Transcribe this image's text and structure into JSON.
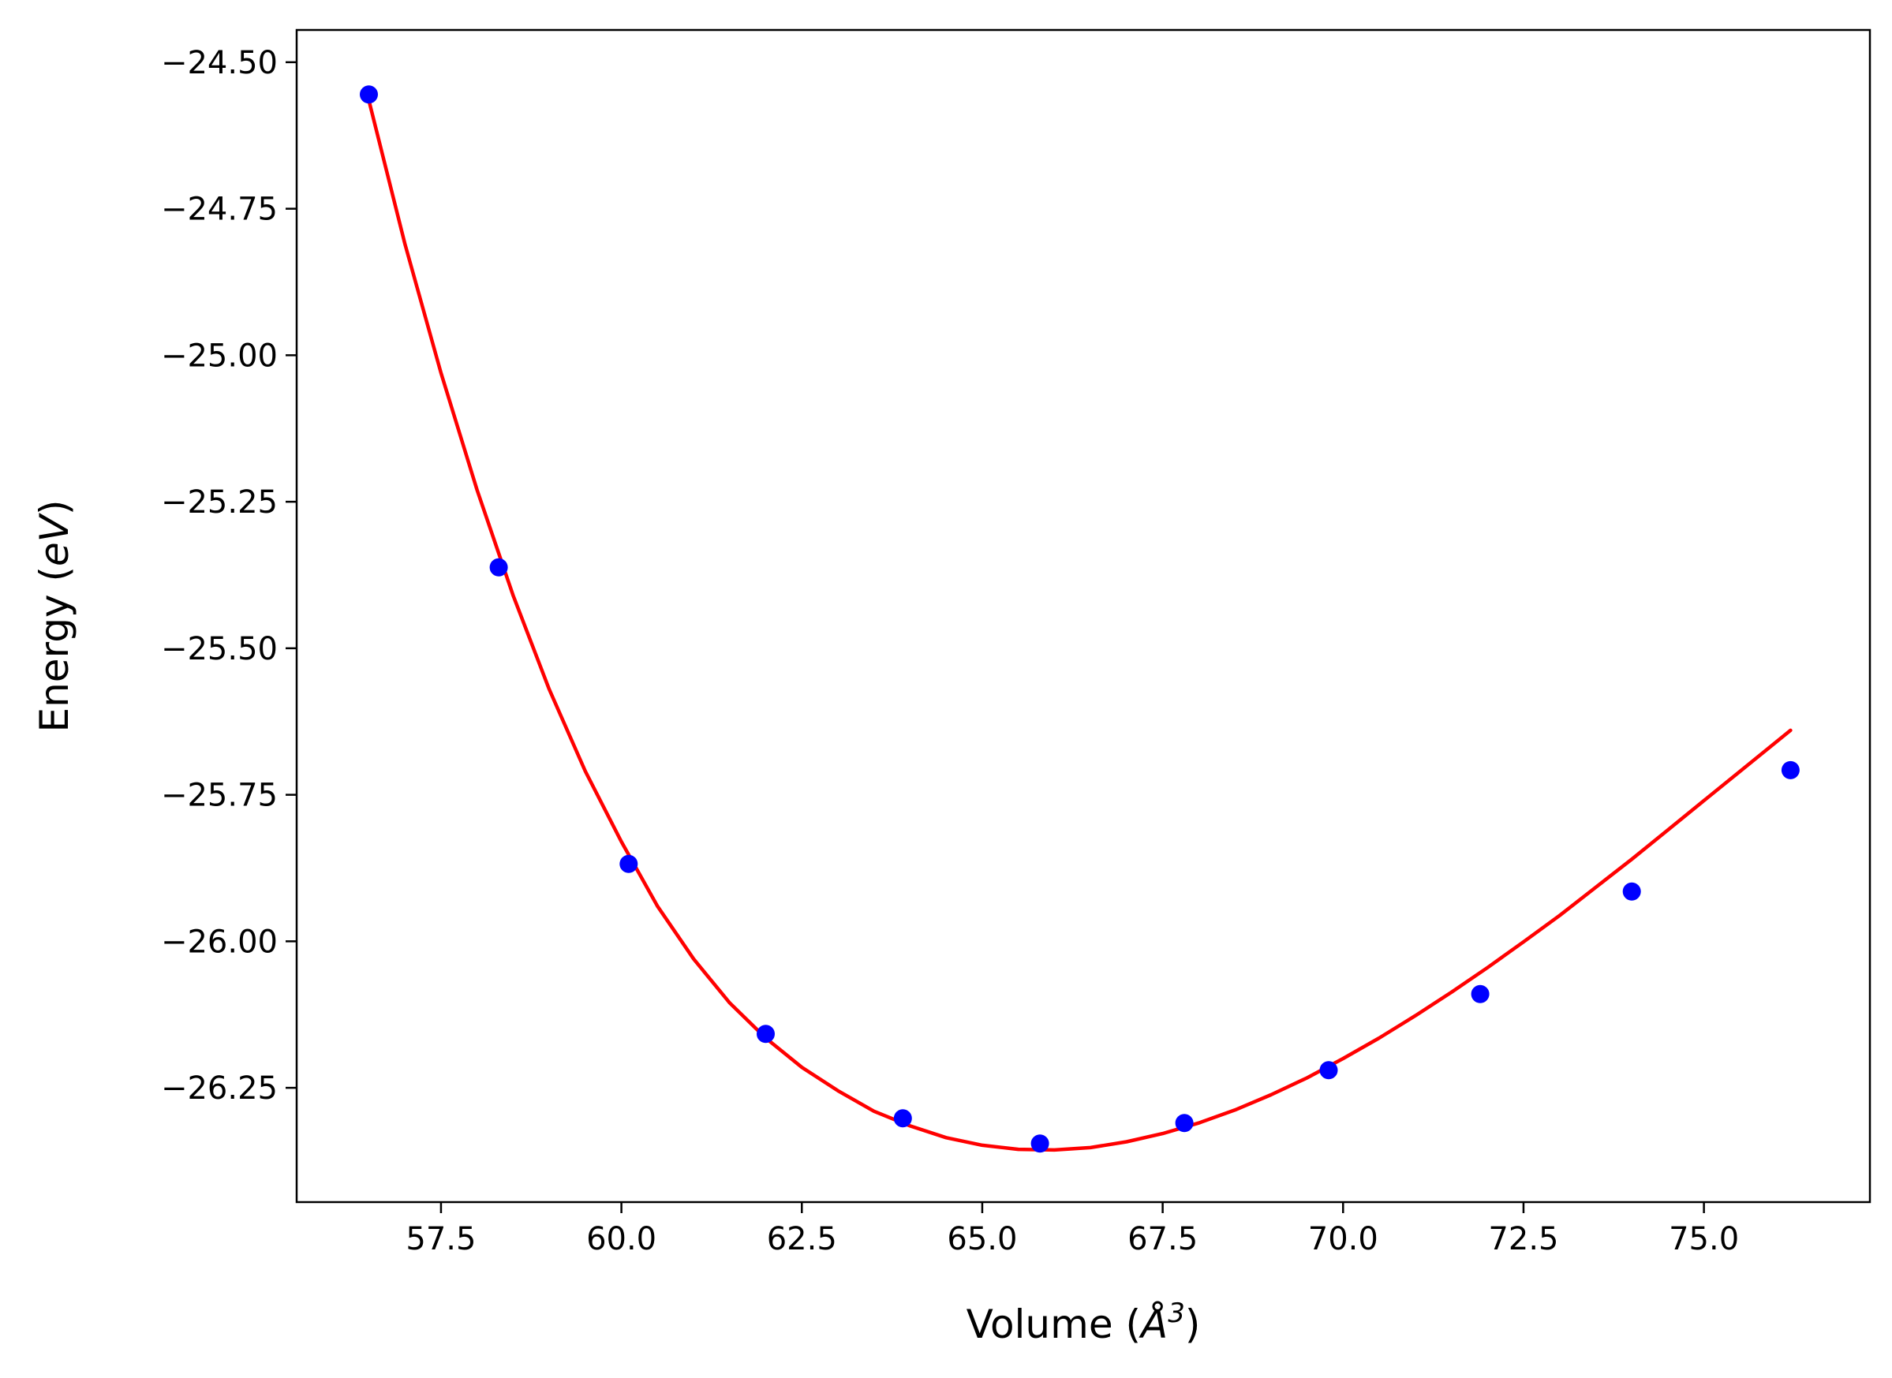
{
  "chart_data": {
    "type": "scatter",
    "xlabel": "Volume (",
    "xlabel_math_symbol": "Å",
    "xlabel_math_exp": "3",
    "xlabel_close": ")",
    "ylabel": "Energy (",
    "ylabel_math": "eV",
    "ylabel_close": ")",
    "xlim": [
      55.5,
      77.3
    ],
    "ylim": [
      -26.445,
      -24.445
    ],
    "x_ticks": [
      57.5,
      60.0,
      62.5,
      65.0,
      67.5,
      70.0,
      72.5,
      75.0
    ],
    "x_tick_labels": [
      "57.5",
      "60.0",
      "62.5",
      "65.0",
      "67.5",
      "70.0",
      "72.5",
      "75.0"
    ],
    "y_ticks": [
      -24.5,
      -24.75,
      -25.0,
      -25.25,
      -25.5,
      -25.75,
      -26.0,
      -26.25
    ],
    "y_tick_labels": [
      "−24.50",
      "−24.75",
      "−25.00",
      "−25.25",
      "−25.50",
      "−25.75",
      "−26.00",
      "−26.25"
    ],
    "grid": false,
    "series": [
      {
        "kind": "points",
        "color": "#0000ff",
        "x": [
          56.5,
          58.3,
          60.1,
          62.0,
          63.9,
          65.8,
          67.8,
          69.8,
          71.9,
          74.0,
          76.2
        ],
        "y": [
          -24.555,
          -25.362,
          -25.868,
          -26.158,
          -26.302,
          -26.345,
          -26.31,
          -26.22,
          -26.09,
          -25.915,
          -25.708
        ]
      },
      {
        "kind": "fit-line",
        "color": "#ff0000",
        "x": [
          56.5,
          57.0,
          57.5,
          58.0,
          58.5,
          59.0,
          59.5,
          60.0,
          60.5,
          61.0,
          61.5,
          62.0,
          62.5,
          63.0,
          63.5,
          64.0,
          64.5,
          65.0,
          65.5,
          66.0,
          66.5,
          67.0,
          67.5,
          68.0,
          68.5,
          69.0,
          69.5,
          70.0,
          70.5,
          71.0,
          71.5,
          72.0,
          72.5,
          73.0,
          73.5,
          74.0,
          74.5,
          75.0,
          75.5,
          76.0,
          76.2
        ],
        "y": [
          -24.565,
          -24.81,
          -25.03,
          -25.23,
          -25.41,
          -25.57,
          -25.71,
          -25.83,
          -25.94,
          -26.03,
          -26.105,
          -26.165,
          -26.215,
          -26.255,
          -26.29,
          -26.315,
          -26.335,
          -26.348,
          -26.355,
          -26.356,
          -26.352,
          -26.342,
          -26.328,
          -26.31,
          -26.288,
          -26.262,
          -26.233,
          -26.2,
          -26.165,
          -26.127,
          -26.087,
          -26.045,
          -26.001,
          -25.956,
          -25.908,
          -25.86,
          -25.81,
          -25.76,
          -25.71,
          -25.66,
          -25.64
        ]
      }
    ]
  }
}
